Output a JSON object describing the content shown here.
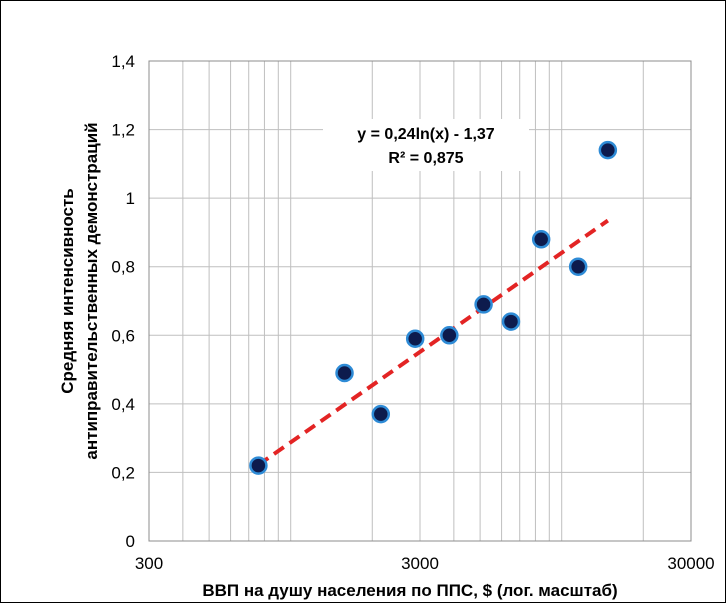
{
  "chart_data": {
    "type": "scatter",
    "xscale": "log",
    "xlim": [
      300,
      30000
    ],
    "ylim": [
      0,
      1.4
    ],
    "xticks": [
      {
        "value": 300,
        "label": "300"
      },
      {
        "value": 3000,
        "label": "3000"
      },
      {
        "value": 30000,
        "label": "30000"
      }
    ],
    "yticks": [
      {
        "value": 0,
        "label": "0"
      },
      {
        "value": 0.2,
        "label": "0,2"
      },
      {
        "value": 0.4,
        "label": "0,4"
      },
      {
        "value": 0.6,
        "label": "0,6"
      },
      {
        "value": 0.8,
        "label": "0,8"
      },
      {
        "value": 1.0,
        "label": "1"
      },
      {
        "value": 1.2,
        "label": "1,2"
      },
      {
        "value": 1.4,
        "label": "1,4"
      }
    ],
    "xlabel": "ВВП на душу населения по ППС, $ (лог. масштаб)",
    "ylabel_lines": [
      "Средняя интенсивность",
      "антиправительственных демонстраций"
    ],
    "grid": true,
    "series": [
      {
        "points": [
          {
            "x": 760,
            "y": 0.22
          },
          {
            "x": 1580,
            "y": 0.49
          },
          {
            "x": 2150,
            "y": 0.37
          },
          {
            "x": 2880,
            "y": 0.59
          },
          {
            "x": 3850,
            "y": 0.6
          },
          {
            "x": 5150,
            "y": 0.69
          },
          {
            "x": 6500,
            "y": 0.64
          },
          {
            "x": 8400,
            "y": 0.88
          },
          {
            "x": 11500,
            "y": 0.8
          },
          {
            "x": 14800,
            "y": 1.14
          }
        ],
        "marker_color": "#0d1b4d",
        "marker_edge_color": "#2e8bd6"
      }
    ],
    "trendline": {
      "type": "logarithmic",
      "a": 0.24,
      "b": -1.37,
      "x_range": [
        760,
        14800
      ],
      "color": "#e32424",
      "equation_label": "y = 0,24ln(x) - 1,37",
      "r2_label": "R² = 0,875"
    }
  }
}
